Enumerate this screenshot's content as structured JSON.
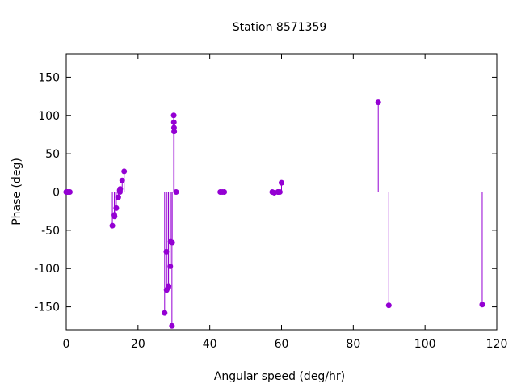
{
  "chart_data": {
    "type": "scatter",
    "style": "impulses-with-points",
    "title": "Station 8571359",
    "xlabel": "Angular speed (deg/hr)",
    "ylabel": "Phase (deg)",
    "xlim": [
      0,
      120
    ],
    "ylim": [
      -180,
      180
    ],
    "xticks": [
      0,
      20,
      40,
      60,
      80,
      100,
      120
    ],
    "yticks": [
      -150,
      -100,
      -50,
      0,
      50,
      100,
      150
    ],
    "zero_line": "dotted",
    "grid": false,
    "legend": "none",
    "series_color": "#9400d3",
    "x": [
      0.0,
      0.04,
      0.08,
      0.5,
      1.0,
      12.85,
      13.4,
      13.47,
      13.94,
      14.49,
      14.9,
      14.96,
      15.04,
      15.59,
      16.14,
      27.42,
      27.9,
      27.97,
      28.44,
      28.51,
      28.99,
      29.07,
      29.46,
      29.53,
      29.96,
      30.0,
      30.04,
      30.08,
      30.63,
      42.93,
      43.48,
      44.03,
      57.42,
      57.97,
      58.98,
      59.07,
      59.53,
      60.0,
      86.95,
      89.9,
      115.94
    ],
    "y": [
      0,
      0,
      0,
      0,
      0,
      -44,
      -30,
      -32,
      -21,
      -7,
      2,
      0,
      4,
      15,
      27,
      -158,
      -78,
      -128,
      -125,
      -123,
      -97,
      -65,
      -175,
      -66,
      100,
      91,
      84,
      79,
      0,
      0,
      0,
      0,
      0,
      -1,
      0,
      0,
      0,
      12,
      117,
      -148,
      -147
    ]
  }
}
